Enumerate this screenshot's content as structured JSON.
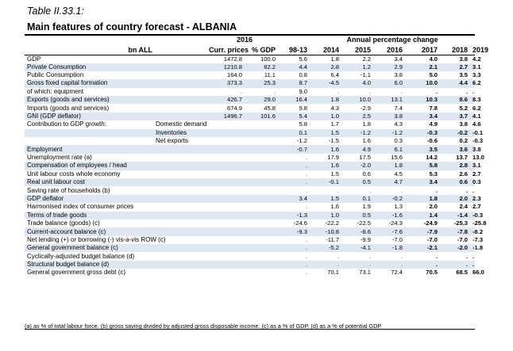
{
  "caption": "Table II.33.1:",
  "title": "Main features of country forecast - ALBANIA",
  "header": {
    "group_2016": "2016",
    "group_annual": "Annual percentage change",
    "col_label": "bn ALL",
    "cols": [
      "Curr. prices",
      "% GDP",
      "98-13",
      "2014",
      "2015",
      "2016",
      "2017",
      "2018",
      "2019"
    ]
  },
  "rows": [
    {
      "label": "GDP",
      "sub": "",
      "v": [
        "1472.8",
        "100.0",
        "5.6",
        "1.8",
        "2.2",
        "3.4",
        "4.0",
        "3.8",
        "4.2"
      ],
      "shade": false
    },
    {
      "label": "Private Consumption",
      "sub": "",
      "v": [
        "1210.8",
        "82.2",
        "4.4",
        "2.8",
        "1.2",
        "2.9",
        "2.1",
        "2.7",
        "3.1"
      ],
      "shade": true
    },
    {
      "label": "Public Consumption",
      "sub": "",
      "v": [
        "164.0",
        "11.1",
        "0.8",
        "6.4",
        "-1.1",
        "3.8",
        "5.0",
        "3.5",
        "3.3"
      ],
      "shade": false
    },
    {
      "label": "Gross fixed capital formation",
      "sub": "",
      "v": [
        "373.3",
        "25.3",
        "8.7",
        "-4.5",
        "4.0",
        "6.0",
        "10.0",
        "4.4",
        "6.2"
      ],
      "shade": true
    },
    {
      "label": "of which: equipment",
      "sub": "",
      "v": [
        ".",
        ".",
        "9.0",
        ".",
        ".",
        ".",
        ".",
        ".",
        "."
      ],
      "shade": false
    },
    {
      "label": "Exports (goods and services)",
      "sub": "",
      "v": [
        "426.7",
        "29.0",
        "16.4",
        "1.8",
        "10.0",
        "13.1",
        "10.3",
        "8.6",
        "8.3"
      ],
      "shade": true
    },
    {
      "label": "Imports (goods and services)",
      "sub": "",
      "v": [
        "674.9",
        "45.8",
        "9.8",
        "4.3",
        "-2.9",
        "7.4",
        "7.8",
        "5.2",
        "6.2"
      ],
      "shade": false
    },
    {
      "label": "GNI (GDP deflator)",
      "sub": "",
      "v": [
        "1496.7",
        "101.6",
        "5.4",
        "1.0",
        "2.5",
        "3.8",
        "3.4",
        "3.7",
        "4.1"
      ],
      "shade": true
    },
    {
      "label": "Contribution to GDP growth:",
      "sub": "Domestic demand",
      "v": [
        "",
        "",
        "5.8",
        "1.7",
        "1.8",
        "4.3",
        "4.9",
        "3.8",
        "4.6"
      ],
      "shade": false
    },
    {
      "label": "",
      "sub": "Inventories",
      "v": [
        "",
        "",
        "0.1",
        "1.5",
        "-1.2",
        "-1.2",
        "-0.3",
        "-0.2",
        "-0.1"
      ],
      "shade": true
    },
    {
      "label": "",
      "sub": "Net exports",
      "v": [
        "",
        "",
        "-1.2",
        "-1.5",
        "1.6",
        "0.3",
        "-0.6",
        "0.2",
        "-0.3"
      ],
      "shade": false
    },
    {
      "label": "Employment",
      "sub": "",
      "v": [
        "",
        "",
        "-0.7",
        "1.6",
        "4.9",
        "6.1",
        "3.5",
        "3.6",
        "3.8"
      ],
      "shade": true
    },
    {
      "label": "Unemployment rate (a)",
      "sub": "",
      "v": [
        "",
        "",
        ".",
        "17.9",
        "17.5",
        "15.6",
        "14.2",
        "13.7",
        "13.0"
      ],
      "shade": false
    },
    {
      "label": "Compensation of employees / head",
      "sub": "",
      "v": [
        "",
        "",
        ".",
        "1.6",
        "-2.0",
        "1.8",
        "5.8",
        "2.8",
        "3.1"
      ],
      "shade": true
    },
    {
      "label": "Unit labour costs whole economy",
      "sub": "",
      "v": [
        "",
        "",
        ".",
        "1.5",
        "0.6",
        "4.5",
        "5.3",
        "2.6",
        "2.7"
      ],
      "shade": false
    },
    {
      "label": "Real unit labour cost",
      "sub": "",
      "v": [
        "",
        "",
        ".",
        "-0.1",
        "0.5",
        "4.7",
        "3.4",
        "0.6",
        "0.3"
      ],
      "shade": true
    },
    {
      "label": "Saving rate of households (b)",
      "sub": "",
      "v": [
        "",
        "",
        ".",
        ".",
        ".",
        ".",
        ".",
        ".",
        "."
      ],
      "shade": false
    },
    {
      "label": "GDP deflator",
      "sub": "",
      "v": [
        "",
        "",
        "3.4",
        "1.5",
        "0.1",
        "-0.2",
        "1.8",
        "2.0",
        "2.3"
      ],
      "shade": true
    },
    {
      "label": "Harmonised index of consumer prices",
      "sub": "",
      "v": [
        "",
        "",
        ".",
        "1.6",
        "1.9",
        "1.3",
        "2.0",
        "2.4",
        "2.7"
      ],
      "shade": false
    },
    {
      "label": "Terms of trade goods",
      "sub": "",
      "v": [
        "",
        "",
        "-1.3",
        "1.0",
        "0.5",
        "-1.6",
        "1.4",
        "-1.4",
        "-0.3"
      ],
      "shade": true
    },
    {
      "label": "Trade balance (goods) (c)",
      "sub": "",
      "v": [
        "",
        "",
        "-24.6",
        "-22.2",
        "-22.5",
        "-24.3",
        "-24.9",
        "-25.3",
        "-25.8"
      ],
      "shade": false
    },
    {
      "label": "Current-account balance (c)",
      "sub": "",
      "v": [
        "",
        "",
        "-9.3",
        "-10.8",
        "-8.6",
        "-7.6",
        "-7.9",
        "-7.8",
        "-8.2"
      ],
      "shade": true
    },
    {
      "label": "Net lending (+) or borrowing (-) vis-a-vis ROW (c)",
      "sub": "",
      "v": [
        "",
        "",
        ".",
        "-11.7",
        "-9.9",
        "-7.0",
        "-7.0",
        "-7.0",
        "-7.3"
      ],
      "shade": false
    },
    {
      "label": "General government balance (c)",
      "sub": "",
      "v": [
        "",
        "",
        ".",
        "-5.2",
        "-4.1",
        "-1.8",
        "-2.1",
        "-2.0",
        "-1.8"
      ],
      "shade": true
    },
    {
      "label": "Cyclically-adjusted budget balance (d)",
      "sub": "",
      "v": [
        "",
        "",
        ".",
        ".",
        ".",
        ".",
        ".",
        ".",
        "."
      ],
      "shade": false
    },
    {
      "label": "Structural budget balance (d)",
      "sub": "",
      "v": [
        "",
        "",
        ".",
        ".",
        ".",
        ".",
        ".",
        ".",
        "."
      ],
      "shade": true
    },
    {
      "label": "General government gross debt (c)",
      "sub": "",
      "v": [
        "",
        "",
        ".",
        "70.1",
        "73.1",
        "72.4",
        "70.5",
        "68.5",
        "66.0"
      ],
      "shade": false
    }
  ],
  "footnote": "(a) as % of total labour force. (b) gross saving divided by adjusted gross disposable income. (c) as a % of GDP. (d) as a % of potential GDP.",
  "colors": {
    "shade": "#dfe8f2"
  }
}
